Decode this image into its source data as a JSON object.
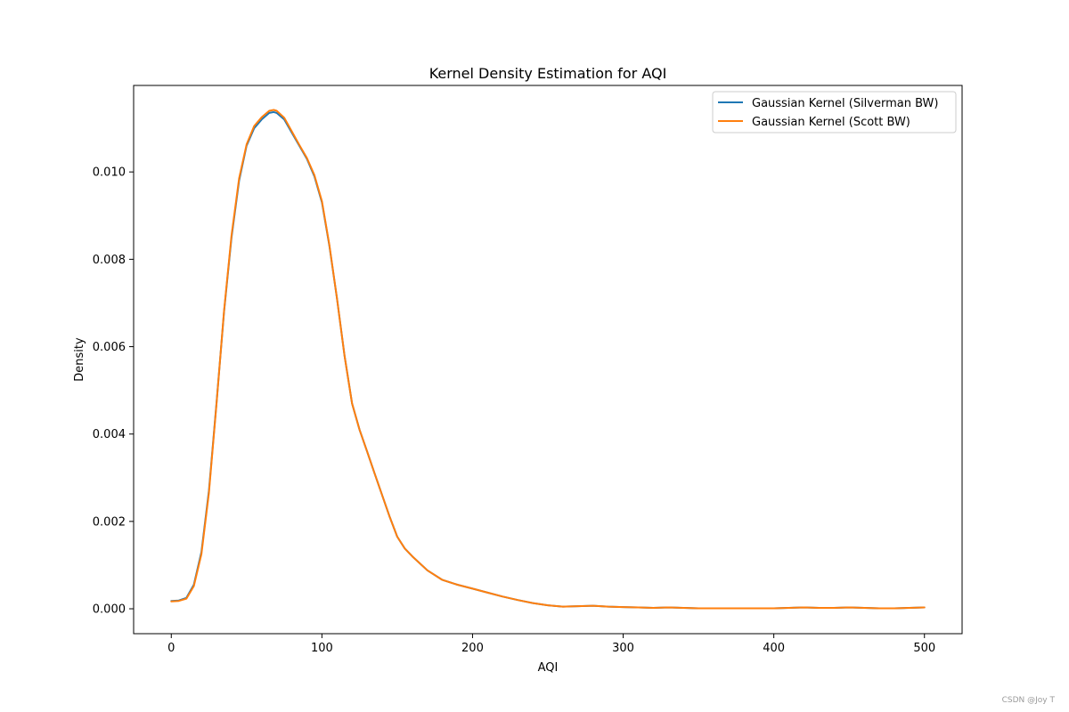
{
  "chart_data": {
    "type": "line",
    "title": "Kernel Density Estimation for AQI",
    "xlabel": "AQI",
    "ylabel": "Density",
    "xlim": [
      -25,
      525
    ],
    "ylim": [
      -0.00057,
      0.01198
    ],
    "xticks": [
      0,
      100,
      200,
      300,
      400,
      500
    ],
    "xtick_labels": [
      "0",
      "100",
      "200",
      "300",
      "400",
      "500"
    ],
    "yticks": [
      0.0,
      0.002,
      0.004,
      0.006,
      0.008,
      0.01
    ],
    "ytick_labels": [
      "0.000",
      "0.002",
      "0.004",
      "0.006",
      "0.008",
      "0.010"
    ],
    "grid": false,
    "legend_position": "top-right",
    "series": [
      {
        "name": "Gaussian Kernel (Silverman BW)",
        "color": "#1f77b4",
        "x": [
          0,
          5,
          10,
          15,
          20,
          25,
          30,
          35,
          40,
          45,
          50,
          55,
          60,
          65,
          68,
          70,
          75,
          80,
          85,
          90,
          95,
          100,
          105,
          110,
          115,
          120,
          125,
          130,
          135,
          140,
          145,
          150,
          155,
          160,
          170,
          180,
          190,
          200,
          210,
          220,
          230,
          240,
          250,
          260,
          270,
          280,
          290,
          300,
          310,
          320,
          330,
          340,
          350,
          360,
          370,
          380,
          390,
          400,
          410,
          420,
          430,
          440,
          450,
          460,
          470,
          480,
          490,
          500
        ],
        "y": [
          0.00018,
          0.00019,
          0.00025,
          0.00055,
          0.0013,
          0.0027,
          0.0047,
          0.0068,
          0.0085,
          0.0098,
          0.0106,
          0.011,
          0.0112,
          0.01135,
          0.01137,
          0.01135,
          0.0112,
          0.0109,
          0.0106,
          0.0103,
          0.0099,
          0.0093,
          0.0083,
          0.0071,
          0.0058,
          0.0047,
          0.0041,
          0.0036,
          0.0031,
          0.0026,
          0.0021,
          0.00165,
          0.00138,
          0.0012,
          0.00088,
          0.00066,
          0.00055,
          0.00046,
          0.00037,
          0.00028,
          0.0002,
          0.00013,
          8e-05,
          5e-05,
          6e-05,
          7e-05,
          5e-05,
          4e-05,
          3e-05,
          2e-05,
          3e-05,
          2e-05,
          1e-05,
          1e-05,
          1e-05,
          1e-05,
          1e-05,
          1e-05,
          2e-05,
          3e-05,
          2e-05,
          2e-05,
          3e-05,
          2e-05,
          1e-05,
          1e-05,
          2e-05,
          3e-05
        ]
      },
      {
        "name": "Gaussian Kernel (Scott BW)",
        "color": "#ff7f0e",
        "x": [
          0,
          5,
          10,
          15,
          20,
          25,
          30,
          35,
          40,
          45,
          50,
          55,
          60,
          65,
          68,
          70,
          75,
          80,
          85,
          90,
          95,
          100,
          105,
          110,
          115,
          120,
          125,
          130,
          135,
          140,
          145,
          150,
          155,
          160,
          170,
          180,
          190,
          200,
          210,
          220,
          230,
          240,
          250,
          260,
          270,
          280,
          290,
          300,
          310,
          320,
          330,
          340,
          350,
          360,
          370,
          380,
          390,
          400,
          410,
          420,
          430,
          440,
          450,
          460,
          470,
          480,
          490,
          500
        ],
        "y": [
          0.00017,
          0.00018,
          0.00023,
          0.00052,
          0.00125,
          0.00265,
          0.00468,
          0.00682,
          0.00855,
          0.00985,
          0.01063,
          0.01105,
          0.01125,
          0.0114,
          0.01142,
          0.0114,
          0.01124,
          0.01093,
          0.01062,
          0.01032,
          0.00993,
          0.00933,
          0.00832,
          0.0071,
          0.0058,
          0.0047,
          0.0041,
          0.0036,
          0.0031,
          0.0026,
          0.0021,
          0.00165,
          0.00138,
          0.0012,
          0.00088,
          0.00066,
          0.00055,
          0.00046,
          0.00037,
          0.00028,
          0.0002,
          0.00013,
          8e-05,
          5e-05,
          6e-05,
          7e-05,
          5e-05,
          4e-05,
          3e-05,
          2e-05,
          3e-05,
          2e-05,
          1e-05,
          1e-05,
          1e-05,
          1e-05,
          1e-05,
          1e-05,
          2e-05,
          3e-05,
          2e-05,
          2e-05,
          3e-05,
          2e-05,
          1e-05,
          1e-05,
          2e-05,
          3e-05
        ]
      }
    ]
  },
  "watermark": "CSDN @Joy T"
}
